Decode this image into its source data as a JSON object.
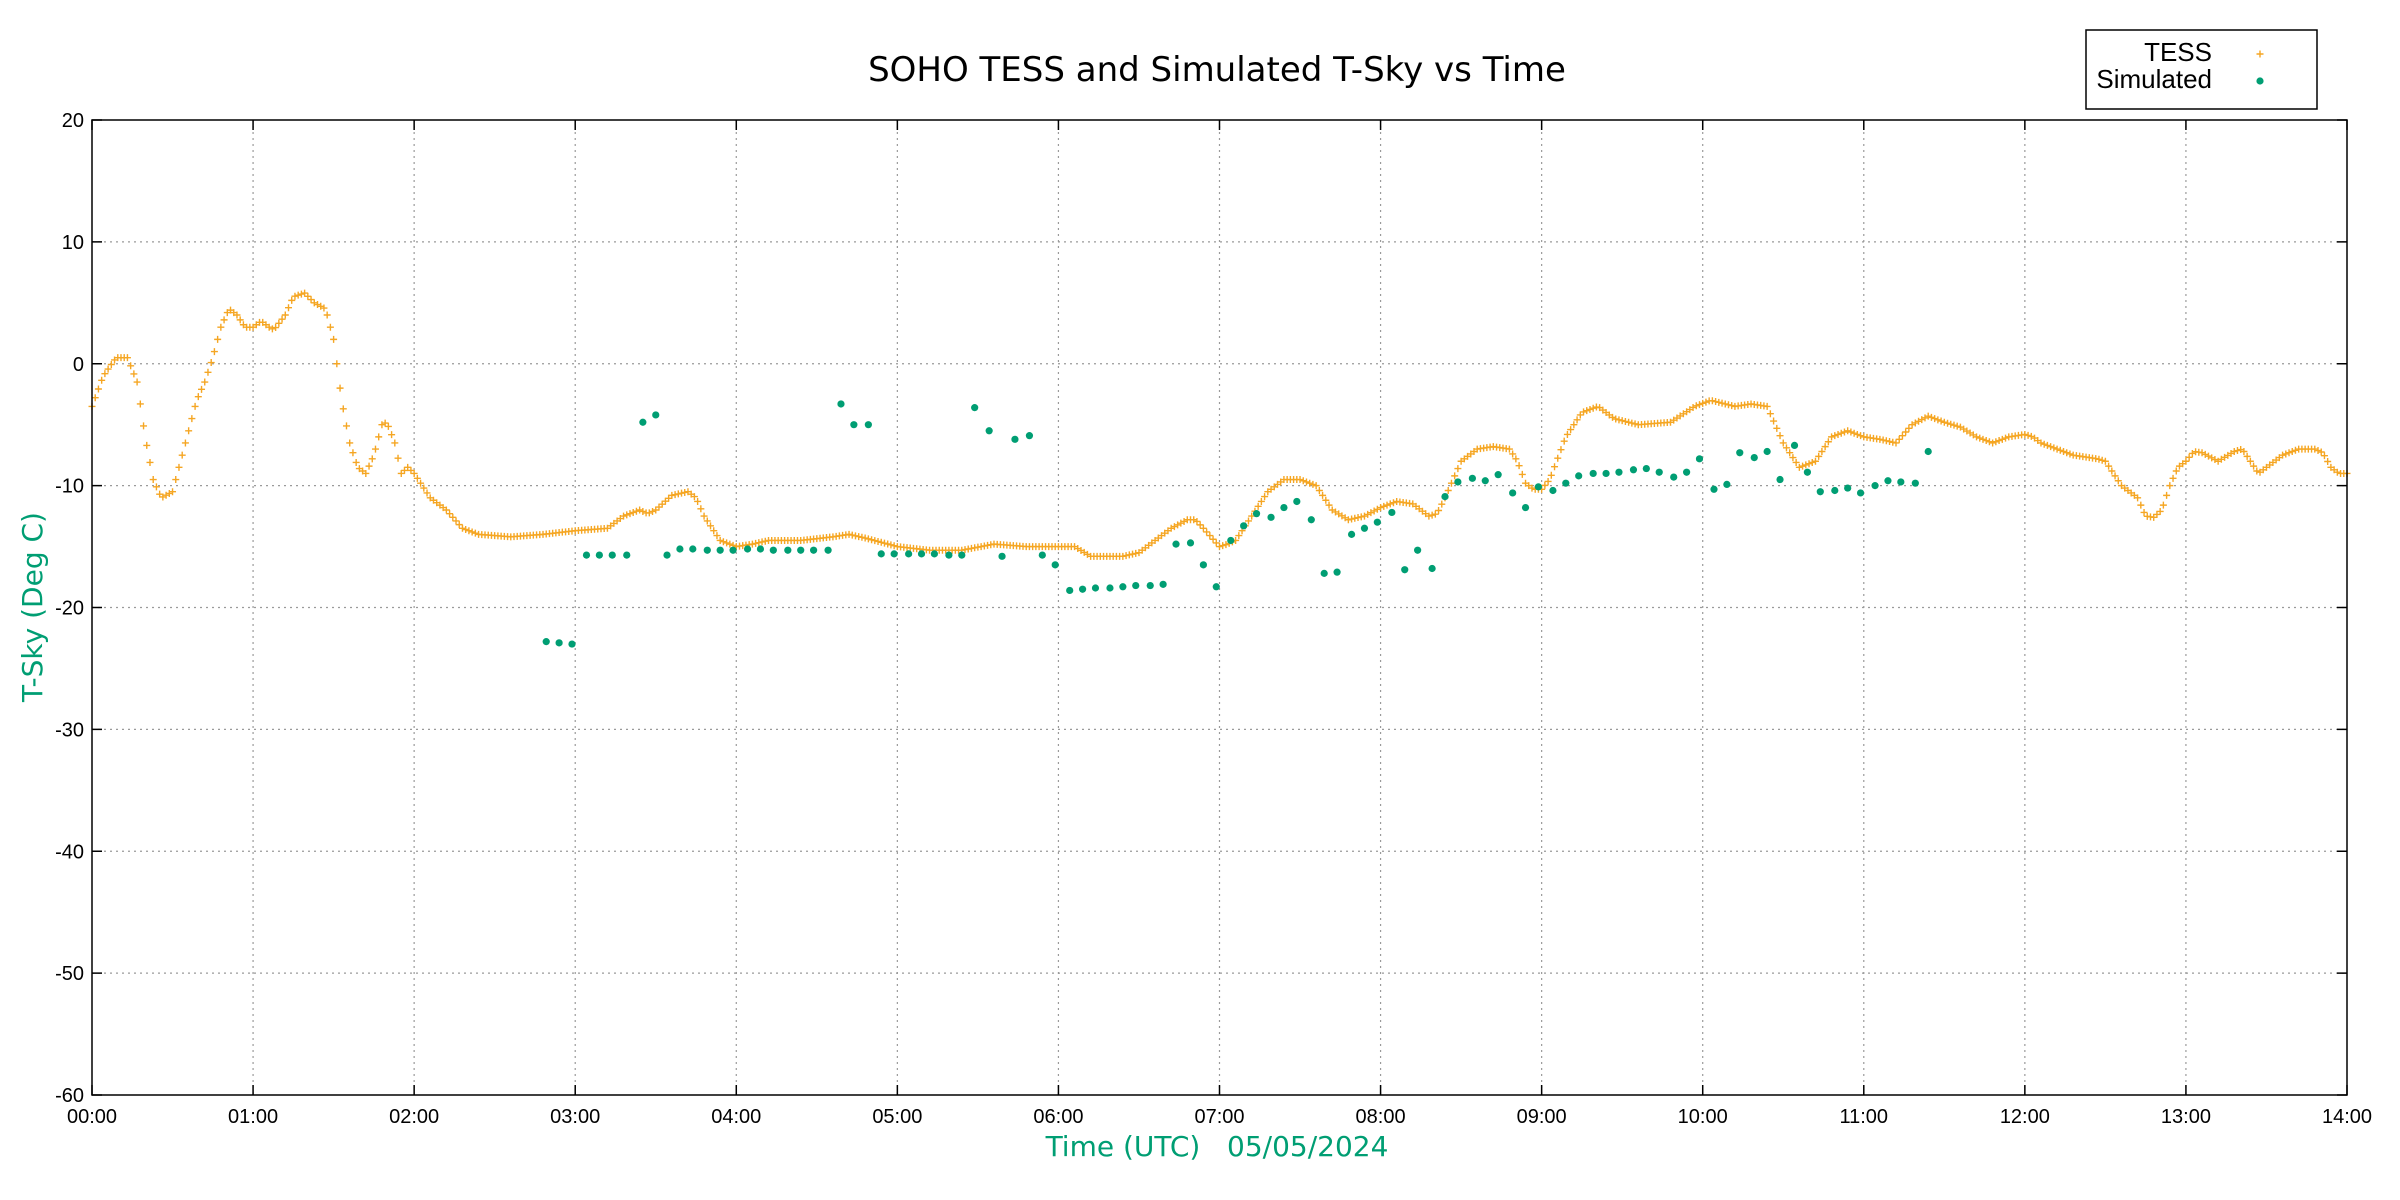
{
  "chart_data": {
    "type": "scatter",
    "title": "SOHO TESS and Simulated T-Sky vs Time",
    "xlabel": "Time (UTC)   05/05/2024",
    "ylabel": "T-Sky (Deg C)",
    "xlim": [
      0,
      14
    ],
    "ylim": [
      -60,
      20
    ],
    "x_unit": "hours",
    "xticks": [
      0,
      1,
      2,
      3,
      4,
      5,
      6,
      7,
      8,
      9,
      10,
      11,
      12,
      13,
      14
    ],
    "xtick_labels": [
      "00:00",
      "01:00",
      "02:00",
      "03:00",
      "04:00",
      "05:00",
      "06:00",
      "07:00",
      "08:00",
      "09:00",
      "10:00",
      "11:00",
      "12:00",
      "13:00",
      "14:00"
    ],
    "yticks": [
      20,
      10,
      0,
      -10,
      -20,
      -30,
      -40,
      -50,
      -60
    ],
    "ytick_labels": [
      "20",
      "10",
      "0",
      "-10",
      "-20",
      "-30",
      "-40",
      "-50",
      "-60"
    ],
    "grid": true,
    "legend_position": "top-right",
    "colors": {
      "tess": "#f5a623",
      "simulated": "#009e73",
      "axis_label": "#009e73"
    },
    "series": [
      {
        "name": "TESS",
        "marker": "plus",
        "step_hours": 0.02,
        "keypoints": [
          [
            0.0,
            -3.5
          ],
          [
            0.07,
            -1
          ],
          [
            0.15,
            0.5
          ],
          [
            0.22,
            0.5
          ],
          [
            0.28,
            -1.5
          ],
          [
            0.33,
            -6
          ],
          [
            0.38,
            -9.5
          ],
          [
            0.43,
            -11
          ],
          [
            0.5,
            -10.5
          ],
          [
            0.55,
            -8
          ],
          [
            0.6,
            -5.5
          ],
          [
            0.65,
            -3
          ],
          [
            0.7,
            -1.5
          ],
          [
            0.75,
            0.5
          ],
          [
            0.8,
            3
          ],
          [
            0.85,
            4.5
          ],
          [
            0.9,
            4
          ],
          [
            0.95,
            3
          ],
          [
            1.0,
            3
          ],
          [
            1.05,
            3.5
          ],
          [
            1.1,
            3
          ],
          [
            1.13,
            2.8
          ],
          [
            1.2,
            4
          ],
          [
            1.25,
            5.5
          ],
          [
            1.32,
            5.8
          ],
          [
            1.38,
            5
          ],
          [
            1.45,
            4.5
          ],
          [
            1.5,
            2
          ],
          [
            1.55,
            -3
          ],
          [
            1.6,
            -6.5
          ],
          [
            1.65,
            -8.5
          ],
          [
            1.7,
            -9
          ],
          [
            1.75,
            -7.5
          ],
          [
            1.8,
            -5
          ],
          [
            1.83,
            -4.8
          ],
          [
            1.88,
            -6.5
          ],
          [
            1.92,
            -9
          ],
          [
            1.96,
            -8.5
          ],
          [
            2.0,
            -9
          ],
          [
            2.05,
            -10
          ],
          [
            2.1,
            -11
          ],
          [
            2.2,
            -12
          ],
          [
            2.3,
            -13.5
          ],
          [
            2.4,
            -14
          ],
          [
            2.6,
            -14.2
          ],
          [
            2.8,
            -14
          ],
          [
            3.0,
            -13.7
          ],
          [
            3.1,
            -13.6
          ],
          [
            3.2,
            -13.5
          ],
          [
            3.3,
            -12.5
          ],
          [
            3.4,
            -12
          ],
          [
            3.45,
            -12.3
          ],
          [
            3.5,
            -12
          ],
          [
            3.6,
            -10.8
          ],
          [
            3.7,
            -10.5
          ],
          [
            3.75,
            -11
          ],
          [
            3.8,
            -12.5
          ],
          [
            3.9,
            -14.5
          ],
          [
            4.0,
            -15
          ],
          [
            4.1,
            -14.8
          ],
          [
            4.2,
            -14.5
          ],
          [
            4.4,
            -14.5
          ],
          [
            4.6,
            -14.2
          ],
          [
            4.7,
            -14
          ],
          [
            4.8,
            -14.3
          ],
          [
            5.0,
            -15
          ],
          [
            5.2,
            -15.3
          ],
          [
            5.4,
            -15.3
          ],
          [
            5.6,
            -14.8
          ],
          [
            5.8,
            -15
          ],
          [
            6.0,
            -15
          ],
          [
            6.1,
            -15
          ],
          [
            6.2,
            -15.8
          ],
          [
            6.4,
            -15.8
          ],
          [
            6.5,
            -15.5
          ],
          [
            6.6,
            -14.5
          ],
          [
            6.7,
            -13.5
          ],
          [
            6.8,
            -12.8
          ],
          [
            6.85,
            -12.8
          ],
          [
            6.9,
            -13.5
          ],
          [
            7.0,
            -15
          ],
          [
            7.05,
            -14.8
          ],
          [
            7.1,
            -14.5
          ],
          [
            7.2,
            -12.5
          ],
          [
            7.3,
            -10.5
          ],
          [
            7.4,
            -9.5
          ],
          [
            7.5,
            -9.5
          ],
          [
            7.6,
            -10
          ],
          [
            7.7,
            -12
          ],
          [
            7.8,
            -12.8
          ],
          [
            7.9,
            -12.5
          ],
          [
            8.0,
            -11.8
          ],
          [
            8.1,
            -11.3
          ],
          [
            8.2,
            -11.5
          ],
          [
            8.3,
            -12.5
          ],
          [
            8.35,
            -12.3
          ],
          [
            8.4,
            -11
          ],
          [
            8.5,
            -8
          ],
          [
            8.6,
            -7
          ],
          [
            8.7,
            -6.8
          ],
          [
            8.8,
            -7
          ],
          [
            8.85,
            -8
          ],
          [
            8.9,
            -9.8
          ],
          [
            8.95,
            -10.3
          ],
          [
            9.0,
            -10.3
          ],
          [
            9.05,
            -9.5
          ],
          [
            9.15,
            -6
          ],
          [
            9.25,
            -4
          ],
          [
            9.35,
            -3.5
          ],
          [
            9.45,
            -4.5
          ],
          [
            9.6,
            -5
          ],
          [
            9.8,
            -4.8
          ],
          [
            9.95,
            -3.5
          ],
          [
            10.05,
            -3
          ],
          [
            10.2,
            -3.5
          ],
          [
            10.3,
            -3.3
          ],
          [
            10.4,
            -3.5
          ],
          [
            10.5,
            -6.5
          ],
          [
            10.6,
            -8.5
          ],
          [
            10.7,
            -8
          ],
          [
            10.8,
            -6
          ],
          [
            10.9,
            -5.5
          ],
          [
            11.0,
            -6
          ],
          [
            11.1,
            -6.2
          ],
          [
            11.2,
            -6.5
          ],
          [
            11.3,
            -5
          ],
          [
            11.4,
            -4.3
          ],
          [
            11.5,
            -4.8
          ],
          [
            11.6,
            -5.2
          ],
          [
            11.7,
            -6
          ],
          [
            11.8,
            -6.5
          ],
          [
            11.9,
            -6
          ],
          [
            12.0,
            -5.8
          ],
          [
            12.05,
            -6
          ],
          [
            12.1,
            -6.5
          ],
          [
            12.2,
            -7
          ],
          [
            12.3,
            -7.5
          ],
          [
            12.45,
            -7.8
          ],
          [
            12.5,
            -8
          ],
          [
            12.55,
            -9
          ],
          [
            12.6,
            -10
          ],
          [
            12.7,
            -11
          ],
          [
            12.75,
            -12.5
          ],
          [
            12.8,
            -12.6
          ],
          [
            12.85,
            -12
          ],
          [
            12.9,
            -10
          ],
          [
            12.95,
            -8.5
          ],
          [
            13.0,
            -8
          ],
          [
            13.05,
            -7.2
          ],
          [
            13.1,
            -7.3
          ],
          [
            13.2,
            -8
          ],
          [
            13.3,
            -7.2
          ],
          [
            13.35,
            -7
          ],
          [
            13.4,
            -8
          ],
          [
            13.45,
            -9
          ],
          [
            13.5,
            -8.5
          ],
          [
            13.55,
            -8
          ],
          [
            13.6,
            -7.5
          ],
          [
            13.7,
            -7
          ],
          [
            13.8,
            -7
          ],
          [
            13.85,
            -7.3
          ],
          [
            13.9,
            -8.5
          ],
          [
            13.95,
            -9
          ],
          [
            14.0,
            -9
          ]
        ]
      },
      {
        "name": "Simulated",
        "marker": "dot",
        "points": [
          [
            2.82,
            -22.8
          ],
          [
            2.9,
            -22.9
          ],
          [
            2.98,
            -23
          ],
          [
            3.07,
            -15.7
          ],
          [
            3.15,
            -15.7
          ],
          [
            3.23,
            -15.7
          ],
          [
            3.32,
            -15.7
          ],
          [
            3.42,
            -4.8
          ],
          [
            3.5,
            -4.2
          ],
          [
            3.57,
            -15.7
          ],
          [
            3.65,
            -15.2
          ],
          [
            3.73,
            -15.2
          ],
          [
            3.82,
            -15.3
          ],
          [
            3.9,
            -15.3
          ],
          [
            3.98,
            -15.3
          ],
          [
            4.07,
            -15.2
          ],
          [
            4.15,
            -15.2
          ],
          [
            4.23,
            -15.3
          ],
          [
            4.32,
            -15.3
          ],
          [
            4.4,
            -15.3
          ],
          [
            4.48,
            -15.3
          ],
          [
            4.57,
            -15.3
          ],
          [
            4.65,
            -3.3
          ],
          [
            4.73,
            -5
          ],
          [
            4.82,
            -5
          ],
          [
            4.9,
            -15.6
          ],
          [
            4.98,
            -15.6
          ],
          [
            5.07,
            -15.6
          ],
          [
            5.15,
            -15.6
          ],
          [
            5.23,
            -15.6
          ],
          [
            5.32,
            -15.7
          ],
          [
            5.4,
            -15.7
          ],
          [
            5.48,
            -3.6
          ],
          [
            5.57,
            -5.5
          ],
          [
            5.65,
            -15.8
          ],
          [
            5.73,
            -6.2
          ],
          [
            5.82,
            -5.9
          ],
          [
            5.9,
            -15.7
          ],
          [
            5.98,
            -16.5
          ],
          [
            6.07,
            -18.6
          ],
          [
            6.15,
            -18.5
          ],
          [
            6.23,
            -18.4
          ],
          [
            6.32,
            -18.4
          ],
          [
            6.4,
            -18.3
          ],
          [
            6.48,
            -18.2
          ],
          [
            6.57,
            -18.2
          ],
          [
            6.65,
            -18.1
          ],
          [
            6.73,
            -14.8
          ],
          [
            6.82,
            -14.7
          ],
          [
            6.9,
            -16.5
          ],
          [
            6.98,
            -18.3
          ],
          [
            7.07,
            -14.5
          ],
          [
            7.15,
            -13.3
          ],
          [
            7.23,
            -12.3
          ],
          [
            7.32,
            -12.6
          ],
          [
            7.4,
            -11.8
          ],
          [
            7.48,
            -11.3
          ],
          [
            7.57,
            -12.8
          ],
          [
            7.65,
            -17.2
          ],
          [
            7.73,
            -17.1
          ],
          [
            7.82,
            -14
          ],
          [
            7.9,
            -13.5
          ],
          [
            7.98,
            -13
          ],
          [
            8.07,
            -12.2
          ],
          [
            8.15,
            -16.9
          ],
          [
            8.23,
            -15.3
          ],
          [
            8.32,
            -16.8
          ],
          [
            8.4,
            -10.9
          ],
          [
            8.48,
            -9.7
          ],
          [
            8.57,
            -9.4
          ],
          [
            8.65,
            -9.6
          ],
          [
            8.73,
            -9.1
          ],
          [
            8.82,
            -10.6
          ],
          [
            8.9,
            -11.8
          ],
          [
            8.98,
            -10.1
          ],
          [
            9.07,
            -10.4
          ],
          [
            9.15,
            -9.8
          ],
          [
            9.23,
            -9.2
          ],
          [
            9.32,
            -9
          ],
          [
            9.4,
            -9
          ],
          [
            9.48,
            -8.9
          ],
          [
            9.57,
            -8.7
          ],
          [
            9.65,
            -8.6
          ],
          [
            9.73,
            -8.9
          ],
          [
            9.82,
            -9.3
          ],
          [
            9.9,
            -8.9
          ],
          [
            9.98,
            -7.8
          ],
          [
            10.07,
            -10.3
          ],
          [
            10.15,
            -9.9
          ],
          [
            10.23,
            -7.3
          ],
          [
            10.32,
            -7.7
          ],
          [
            10.4,
            -7.2
          ],
          [
            10.48,
            -9.5
          ],
          [
            10.57,
            -6.7
          ],
          [
            10.65,
            -8.9
          ],
          [
            10.73,
            -10.5
          ],
          [
            10.82,
            -10.4
          ],
          [
            10.9,
            -10.2
          ],
          [
            10.98,
            -10.6
          ],
          [
            11.07,
            -10
          ],
          [
            11.15,
            -9.6
          ],
          [
            11.23,
            -9.7
          ],
          [
            11.32,
            -9.8
          ],
          [
            11.4,
            -7.2
          ]
        ]
      }
    ]
  }
}
